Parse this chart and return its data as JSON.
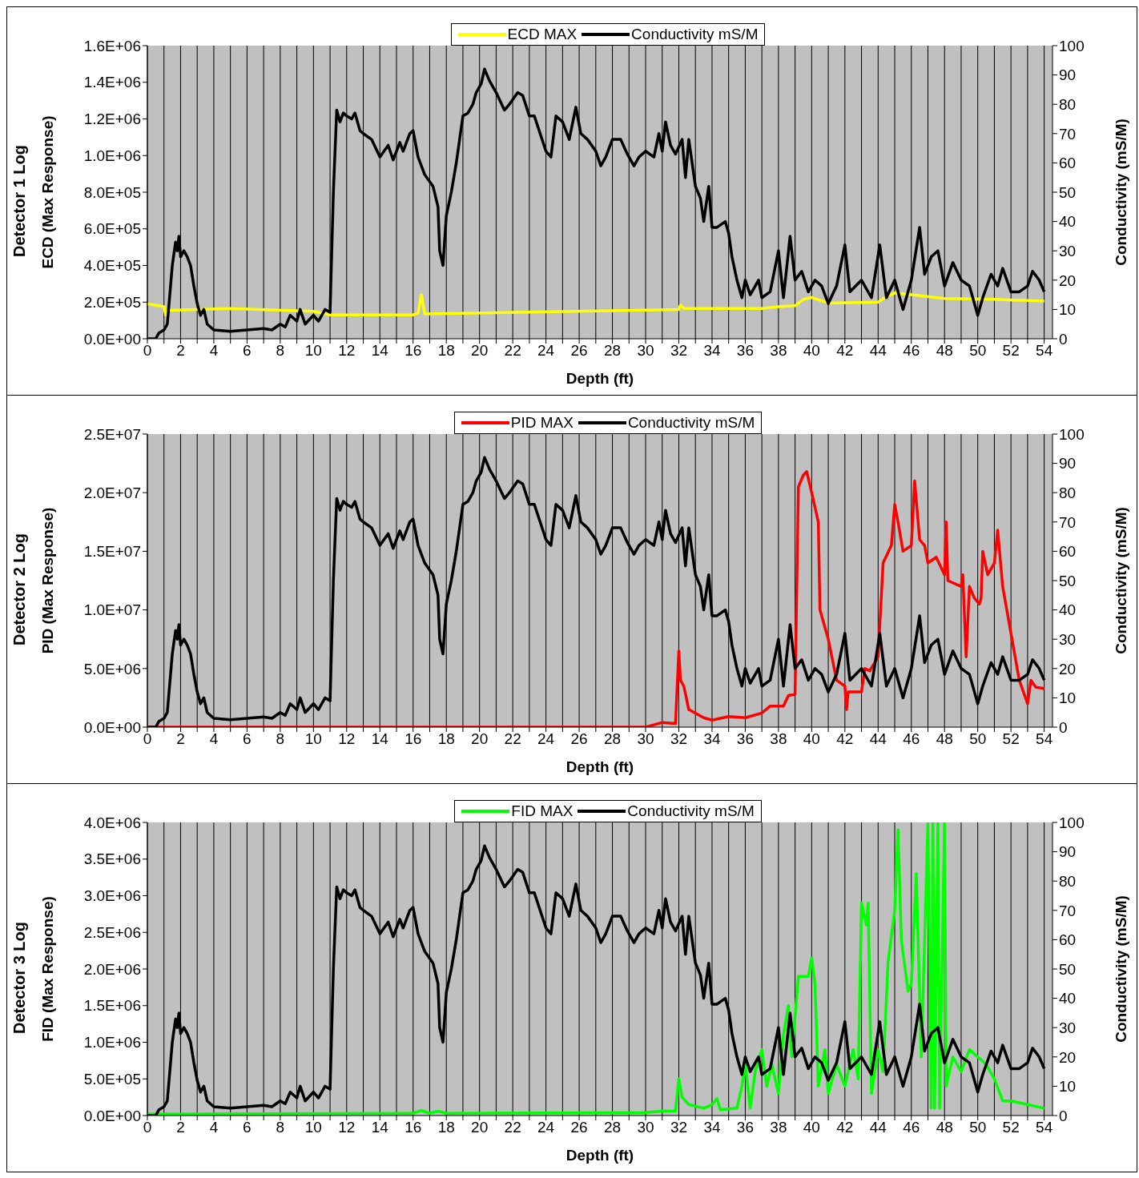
{
  "chart_data": [
    {
      "type": "line",
      "title": "Detector 1 Log",
      "xlabel": "Depth (ft)",
      "ylabel": "ECD (Max Response)",
      "y2label": "Conductivity (mS/M)",
      "grid": true,
      "legend": "top",
      "marker": "none",
      "line_style": "solid",
      "xlim": [
        0,
        54.5
      ],
      "xticks": [
        0,
        {
          "value": 1,
          "label": null
        },
        2,
        {
          "value": 3,
          "label": null
        },
        4,
        {
          "value": 5,
          "label": null
        },
        6,
        {
          "value": 7,
          "label": null
        },
        8,
        {
          "value": 9,
          "label": null
        },
        10,
        {
          "value": 11,
          "label": null
        },
        12,
        {
          "value": 13,
          "label": null
        },
        14,
        {
          "value": 15,
          "label": null
        },
        16,
        {
          "value": 17,
          "label": null
        },
        18,
        {
          "value": 19,
          "label": null
        },
        20,
        {
          "value": 21,
          "label": null
        },
        22,
        {
          "value": 23,
          "label": null
        },
        24,
        {
          "value": 25,
          "label": null
        },
        26,
        {
          "value": 27,
          "label": null
        },
        28,
        {
          "value": 29,
          "label": null
        },
        30,
        {
          "value": 31,
          "label": null
        },
        32,
        {
          "value": 33,
          "label": null
        },
        34,
        {
          "value": 35,
          "label": null
        },
        36,
        {
          "value": 37,
          "label": null
        },
        38,
        {
          "value": 39,
          "label": null
        },
        40,
        {
          "value": 41,
          "label": null
        },
        42,
        {
          "value": 43,
          "label": null
        },
        44,
        {
          "value": 45,
          "label": null
        },
        46,
        {
          "value": 47,
          "label": null
        },
        48,
        {
          "value": 49,
          "label": null
        },
        50,
        {
          "value": 51,
          "label": null
        },
        52,
        {
          "value": 53,
          "label": null
        },
        54
      ],
      "ylim": [
        0,
        1600000
      ],
      "yticks": [
        {
          "value": 0,
          "label": "0.0E+00"
        },
        {
          "value": 200000,
          "label": "2.0E+05"
        },
        {
          "value": 400000,
          "label": "4.0E+05"
        },
        {
          "value": 600000,
          "label": "6.0E+05"
        },
        {
          "value": 800000,
          "label": "8.0E+05"
        },
        {
          "value": 1000000,
          "label": "1.0E+06"
        },
        {
          "value": 1200000,
          "label": "1.2E+06"
        },
        {
          "value": 1400000,
          "label": "1.4E+06"
        },
        {
          "value": 1600000,
          "label": "1.6E+06"
        }
      ],
      "y2lim": [
        0,
        100
      ],
      "y2ticks": [
        0,
        10,
        20,
        30,
        40,
        50,
        60,
        70,
        80,
        90,
        100
      ],
      "series": [
        {
          "name": "ECD  MAX",
          "color": "#ffff00",
          "x": [
            0,
            1,
            1.1,
            1.3,
            3,
            5,
            10,
            11,
            16,
            16.3,
            16.5,
            16.7,
            32,
            32.1,
            32.3,
            37,
            38,
            39,
            39.5,
            40,
            41,
            44,
            44.5,
            45,
            46,
            48,
            51,
            54
          ],
          "values": [
            190000,
            175000,
            130000,
            155000,
            160000,
            165000,
            150000,
            130000,
            130000,
            140000,
            240000,
            135000,
            160000,
            185000,
            165000,
            165000,
            175000,
            180000,
            215000,
            225000,
            195000,
            200000,
            230000,
            250000,
            240000,
            220000,
            215000,
            205000
          ]
        },
        {
          "name": "Conductivity mS/M",
          "color": "#000000",
          "axis": "y2",
          "x": [
            0,
            0.5,
            0.7,
            1,
            1.2,
            1.5,
            1.7,
            1.8,
            1.9,
            2,
            2.2,
            2.4,
            2.6,
            2.8,
            3,
            3.2,
            3.4,
            3.6,
            4,
            5,
            6,
            7,
            7.5,
            8,
            8.3,
            8.6,
            9,
            9.2,
            9.5,
            10,
            10.3,
            10.7,
            11,
            11.2,
            11.4,
            11.6,
            11.8,
            12,
            12.3,
            12.5,
            12.8,
            13,
            13.5,
            14,
            14.5,
            14.8,
            15.2,
            15.4,
            15.8,
            16,
            16.3,
            16.7,
            17.2,
            17.5,
            17.6,
            17.8,
            18,
            18.3,
            18.6,
            19,
            19.3,
            19.6,
            19.8,
            20.1,
            20.3,
            20.6,
            21,
            21.5,
            21.8,
            22.3,
            22.6,
            23,
            23.3,
            24,
            24.3,
            24.6,
            25,
            25.4,
            25.8,
            26.1,
            26.5,
            27,
            27.3,
            27.6,
            28,
            28.5,
            28.9,
            29.3,
            29.6,
            30,
            30.5,
            30.8,
            31,
            31.2,
            31.5,
            31.8,
            32.2,
            32.4,
            32.6,
            33,
            33.3,
            33.5,
            33.8,
            34,
            34.3,
            34.8,
            35,
            35.2,
            35.5,
            35.8,
            36,
            36.3,
            36.8,
            37,
            37.5,
            38,
            38.3,
            38.7,
            39,
            39.4,
            39.8,
            40.2,
            40.6,
            41,
            41.5,
            42,
            42.3,
            43,
            43.6,
            44.1,
            44.5,
            45,
            45.5,
            46,
            46.5,
            46.8,
            47.2,
            47.6,
            48,
            48.5,
            49,
            49.5,
            50,
            50.3,
            50.8,
            51.2,
            51.5,
            52,
            52.5,
            53,
            53.3,
            53.7,
            54
          ],
          "values": [
            0,
            0,
            2,
            3,
            5,
            25,
            33,
            30,
            35,
            28,
            30,
            28,
            25,
            18,
            12,
            8,
            10,
            5,
            3,
            2.5,
            3,
            3.5,
            3,
            5,
            4,
            8,
            6,
            10,
            5,
            8,
            6,
            10,
            9,
            50,
            78,
            74,
            77,
            76,
            75,
            77,
            71,
            70,
            68,
            62,
            66,
            61,
            67,
            64,
            70,
            71,
            62,
            56,
            52,
            45,
            30,
            25,
            42,
            50,
            60,
            76,
            77,
            80,
            84,
            87,
            92,
            88,
            84,
            78,
            80,
            84,
            83,
            76,
            76,
            64,
            62,
            76,
            74,
            68,
            79,
            70,
            68,
            64,
            59,
            62,
            68,
            68,
            63,
            59,
            62,
            64,
            62,
            70,
            64,
            74,
            66,
            63,
            68,
            55,
            68,
            52,
            48,
            40,
            52,
            38,
            38,
            40,
            36,
            28,
            20,
            14,
            20,
            15,
            20,
            14,
            16,
            30,
            14,
            35,
            20,
            23,
            16,
            20,
            18,
            12,
            18,
            32,
            16,
            20,
            14,
            32,
            14,
            20,
            10,
            20,
            38,
            22,
            28,
            30,
            18,
            26,
            20,
            18,
            8,
            14,
            22,
            18,
            24,
            16,
            16,
            18,
            23,
            20,
            16
          ]
        }
      ]
    },
    {
      "type": "line",
      "title": "Detector 2 Log",
      "xlabel": "Depth (ft)",
      "ylabel": "PID (Max Response)",
      "y2label": "Conductivity (mS/M)",
      "grid": true,
      "legend": "top",
      "marker": "none",
      "line_style": "solid",
      "xlim": [
        0,
        54.5
      ],
      "xticks": [
        0,
        {
          "value": 1,
          "label": null
        },
        2,
        {
          "value": 3,
          "label": null
        },
        4,
        {
          "value": 5,
          "label": null
        },
        6,
        {
          "value": 7,
          "label": null
        },
        8,
        {
          "value": 9,
          "label": null
        },
        10,
        {
          "value": 11,
          "label": null
        },
        12,
        {
          "value": 13,
          "label": null
        },
        14,
        {
          "value": 15,
          "label": null
        },
        16,
        {
          "value": 17,
          "label": null
        },
        18,
        {
          "value": 19,
          "label": null
        },
        20,
        {
          "value": 21,
          "label": null
        },
        22,
        {
          "value": 23,
          "label": null
        },
        24,
        {
          "value": 25,
          "label": null
        },
        26,
        {
          "value": 27,
          "label": null
        },
        28,
        {
          "value": 29,
          "label": null
        },
        30,
        {
          "value": 31,
          "label": null
        },
        32,
        {
          "value": 33,
          "label": null
        },
        34,
        {
          "value": 35,
          "label": null
        },
        36,
        {
          "value": 37,
          "label": null
        },
        38,
        {
          "value": 39,
          "label": null
        },
        40,
        {
          "value": 41,
          "label": null
        },
        42,
        {
          "value": 43,
          "label": null
        },
        44,
        {
          "value": 45,
          "label": null
        },
        46,
        {
          "value": 47,
          "label": null
        },
        48,
        {
          "value": 49,
          "label": null
        },
        50,
        {
          "value": 51,
          "label": null
        },
        52,
        {
          "value": 53,
          "label": null
        },
        54
      ],
      "ylim": [
        0,
        25000000
      ],
      "yticks": [
        {
          "value": 0,
          "label": "0.0E+00"
        },
        {
          "value": 5000000,
          "label": "5.0E+06"
        },
        {
          "value": 10000000,
          "label": "1.0E+07"
        },
        {
          "value": 15000000,
          "label": "1.5E+07"
        },
        {
          "value": 20000000,
          "label": "2.0E+07"
        },
        {
          "value": 25000000,
          "label": "2.5E+07"
        }
      ],
      "y2lim": [
        0,
        100
      ],
      "y2ticks": [
        0,
        10,
        20,
        30,
        40,
        50,
        60,
        70,
        80,
        90,
        100
      ],
      "series": [
        {
          "name": "PID MAX",
          "color": "#ff0000",
          "x": [
            0,
            30,
            30.5,
            31,
            31.8,
            32,
            32.1,
            32.3,
            32.6,
            33.5,
            34,
            35,
            36,
            37,
            37.5,
            38.3,
            38.6,
            39,
            39.2,
            39.5,
            39.7,
            40,
            40.4,
            40.5,
            41,
            41.5,
            42,
            42.1,
            42.2,
            43,
            43.2,
            43.5,
            44,
            44.3,
            44.8,
            45,
            45.2,
            45.5,
            46,
            46.2,
            46.5,
            46.8,
            47,
            47.5,
            48,
            48.1,
            48.2,
            49,
            49.1,
            49.3,
            49.5,
            49.8,
            50.1,
            50.2,
            50.3,
            50.6,
            51,
            51.2,
            51.5,
            52,
            52.5,
            53,
            53.2,
            53.5,
            54
          ],
          "values": [
            0,
            0,
            200000,
            400000,
            300000,
            6500000,
            4000000,
            3500000,
            1500000,
            800000,
            600000,
            900000,
            800000,
            1200000,
            1800000,
            1800000,
            2700000,
            2800000,
            20500000,
            21500000,
            21800000,
            20000000,
            17500000,
            10000000,
            7500000,
            4000000,
            3500000,
            1500000,
            3000000,
            3000000,
            5000000,
            4800000,
            6000000,
            14000000,
            15500000,
            19000000,
            17500000,
            15000000,
            15500000,
            21000000,
            16000000,
            15500000,
            14000000,
            14500000,
            13000000,
            17500000,
            12500000,
            12000000,
            13000000,
            6000000,
            12000000,
            11000000,
            10500000,
            11000000,
            15000000,
            13000000,
            14000000,
            16800000,
            12000000,
            8000000,
            4000000,
            2000000,
            4000000,
            3400000,
            3300000
          ]
        },
        {
          "name": "Conductivity mS/M",
          "color": "#000000",
          "axis": "y2",
          "x": [
            0,
            0.5,
            0.7,
            1,
            1.2,
            1.5,
            1.7,
            1.8,
            1.9,
            2,
            2.2,
            2.4,
            2.6,
            2.8,
            3,
            3.2,
            3.4,
            3.6,
            4,
            5,
            6,
            7,
            7.5,
            8,
            8.3,
            8.6,
            9,
            9.2,
            9.5,
            10,
            10.3,
            10.7,
            11,
            11.2,
            11.4,
            11.6,
            11.8,
            12,
            12.3,
            12.5,
            12.8,
            13,
            13.5,
            14,
            14.5,
            14.8,
            15.2,
            15.4,
            15.8,
            16,
            16.3,
            16.7,
            17.2,
            17.5,
            17.6,
            17.8,
            18,
            18.3,
            18.6,
            19,
            19.3,
            19.6,
            19.8,
            20.1,
            20.3,
            20.6,
            21,
            21.5,
            21.8,
            22.3,
            22.6,
            23,
            23.3,
            24,
            24.3,
            24.6,
            25,
            25.4,
            25.8,
            26.1,
            26.5,
            27,
            27.3,
            27.6,
            28,
            28.5,
            28.9,
            29.3,
            29.6,
            30,
            30.5,
            30.8,
            31,
            31.2,
            31.5,
            31.8,
            32.2,
            32.4,
            32.6,
            33,
            33.3,
            33.5,
            33.8,
            34,
            34.3,
            34.8,
            35,
            35.2,
            35.5,
            35.8,
            36,
            36.3,
            36.8,
            37,
            37.5,
            38,
            38.3,
            38.7,
            39,
            39.4,
            39.8,
            40.2,
            40.6,
            41,
            41.5,
            42,
            42.3,
            43,
            43.6,
            44.1,
            44.5,
            45,
            45.5,
            46,
            46.5,
            46.8,
            47.2,
            47.6,
            48,
            48.5,
            49,
            49.5,
            50,
            50.3,
            50.8,
            51.2,
            51.5,
            52,
            52.5,
            53,
            53.3,
            53.7,
            54
          ],
          "values": [
            0,
            0,
            2,
            3,
            5,
            25,
            33,
            30,
            35,
            28,
            30,
            28,
            25,
            18,
            12,
            8,
            10,
            5,
            3,
            2.5,
            3,
            3.5,
            3,
            5,
            4,
            8,
            6,
            10,
            5,
            8,
            6,
            10,
            9,
            50,
            78,
            74,
            77,
            76,
            75,
            77,
            71,
            70,
            68,
            62,
            66,
            61,
            67,
            64,
            70,
            71,
            62,
            56,
            52,
            45,
            30,
            25,
            42,
            50,
            60,
            76,
            77,
            80,
            84,
            87,
            92,
            88,
            84,
            78,
            80,
            84,
            83,
            76,
            76,
            64,
            62,
            76,
            74,
            68,
            79,
            70,
            68,
            64,
            59,
            62,
            68,
            68,
            63,
            59,
            62,
            64,
            62,
            70,
            64,
            74,
            66,
            63,
            68,
            55,
            68,
            52,
            48,
            40,
            52,
            38,
            38,
            40,
            36,
            28,
            20,
            14,
            20,
            15,
            20,
            14,
            16,
            30,
            14,
            35,
            20,
            23,
            16,
            20,
            18,
            12,
            18,
            32,
            16,
            20,
            14,
            32,
            14,
            20,
            10,
            20,
            38,
            22,
            28,
            30,
            18,
            26,
            20,
            18,
            8,
            14,
            22,
            18,
            24,
            16,
            16,
            18,
            23,
            20,
            16
          ]
        }
      ]
    },
    {
      "type": "line",
      "title": "Detector 3 Log",
      "xlabel": "Depth (ft)",
      "ylabel": "FID (Max Response)",
      "y2label": "Conductivity (mS/M)",
      "grid": true,
      "legend": "top",
      "marker": "none",
      "line_style": "solid",
      "xlim": [
        0,
        54.5
      ],
      "xticks": [
        0,
        {
          "value": 1,
          "label": null
        },
        2,
        {
          "value": 3,
          "label": null
        },
        4,
        {
          "value": 5,
          "label": null
        },
        6,
        {
          "value": 7,
          "label": null
        },
        8,
        {
          "value": 9,
          "label": null
        },
        10,
        {
          "value": 11,
          "label": null
        },
        12,
        {
          "value": 13,
          "label": null
        },
        14,
        {
          "value": 15,
          "label": null
        },
        16,
        {
          "value": 17,
          "label": null
        },
        18,
        {
          "value": 19,
          "label": null
        },
        20,
        {
          "value": 21,
          "label": null
        },
        22,
        {
          "value": 23,
          "label": null
        },
        24,
        {
          "value": 25,
          "label": null
        },
        26,
        {
          "value": 27,
          "label": null
        },
        28,
        {
          "value": 29,
          "label": null
        },
        30,
        {
          "value": 31,
          "label": null
        },
        32,
        {
          "value": 33,
          "label": null
        },
        34,
        {
          "value": 35,
          "label": null
        },
        36,
        {
          "value": 37,
          "label": null
        },
        38,
        {
          "value": 39,
          "label": null
        },
        40,
        {
          "value": 41,
          "label": null
        },
        42,
        {
          "value": 43,
          "label": null
        },
        44,
        {
          "value": 45,
          "label": null
        },
        46,
        {
          "value": 47,
          "label": null
        },
        48,
        {
          "value": 49,
          "label": null
        },
        50,
        {
          "value": 51,
          "label": null
        },
        52,
        {
          "value": 53,
          "label": null
        },
        54
      ],
      "ylim": [
        0,
        4000000
      ],
      "yticks": [
        {
          "value": 0,
          "label": "0.0E+00"
        },
        {
          "value": 500000,
          "label": "5.0E+05"
        },
        {
          "value": 1000000,
          "label": "1.0E+06"
        },
        {
          "value": 1500000,
          "label": "1.5E+06"
        },
        {
          "value": 2000000,
          "label": "2.0E+06"
        },
        {
          "value": 2500000,
          "label": "2.5E+06"
        },
        {
          "value": 3000000,
          "label": "3.0E+06"
        },
        {
          "value": 3500000,
          "label": "3.5E+06"
        },
        {
          "value": 4000000,
          "label": "4.0E+06"
        }
      ],
      "y2lim": [
        0,
        100
      ],
      "y2ticks": [
        0,
        10,
        20,
        30,
        40,
        50,
        60,
        70,
        80,
        90,
        100
      ],
      "series": [
        {
          "name": "FID MAX",
          "color": "#00ff00",
          "x": [
            0,
            16,
            16.5,
            17,
            17.5,
            18,
            30,
            31,
            31.8,
            32,
            32.2,
            32.6,
            33.5,
            34,
            34.3,
            34.5,
            35.5,
            35.8,
            36,
            36.3,
            36.6,
            37,
            37.3,
            37.6,
            38,
            38.3,
            38.6,
            38.8,
            39.2,
            39.8,
            40,
            40.2,
            40.4,
            40.8,
            41,
            41.5,
            42,
            42.5,
            42.8,
            43,
            43.3,
            43.4,
            43.6,
            44,
            44.3,
            44.6,
            45,
            45.2,
            45.4,
            45.8,
            46,
            46.3,
            46.6,
            47,
            47.2,
            47.3,
            47.4,
            47.6,
            47.7,
            48,
            48.1,
            48.5,
            49,
            49.5,
            50,
            50.5,
            51,
            51.5,
            52,
            53,
            54
          ],
          "values": [
            20000,
            30000,
            70000,
            30000,
            60000,
            30000,
            40000,
            60000,
            60000,
            500000,
            250000,
            150000,
            100000,
            150000,
            230000,
            80000,
            100000,
            400000,
            700000,
            100000,
            600000,
            900000,
            400000,
            700000,
            300000,
            1100000,
            1500000,
            800000,
            1900000,
            1900000,
            2150000,
            1800000,
            400000,
            900000,
            300000,
            700000,
            400000,
            900000,
            500000,
            2900000,
            2600000,
            2900000,
            300000,
            900000,
            600000,
            2100000,
            2800000,
            3900000,
            2400000,
            1700000,
            1800000,
            3300000,
            800000,
            4000000,
            100000,
            4000000,
            100000,
            4000000,
            100000,
            4000000,
            400000,
            800000,
            600000,
            900000,
            800000,
            700000,
            500000,
            200000,
            200000,
            150000,
            100000
          ]
        },
        {
          "name": "Conductivity mS/M",
          "color": "#000000",
          "axis": "y2",
          "x": [
            0,
            0.5,
            0.7,
            1,
            1.2,
            1.5,
            1.7,
            1.8,
            1.9,
            2,
            2.2,
            2.4,
            2.6,
            2.8,
            3,
            3.2,
            3.4,
            3.6,
            4,
            5,
            6,
            7,
            7.5,
            8,
            8.3,
            8.6,
            9,
            9.2,
            9.5,
            10,
            10.3,
            10.7,
            11,
            11.2,
            11.4,
            11.6,
            11.8,
            12,
            12.3,
            12.5,
            12.8,
            13,
            13.5,
            14,
            14.5,
            14.8,
            15.2,
            15.4,
            15.8,
            16,
            16.3,
            16.7,
            17.2,
            17.5,
            17.6,
            17.8,
            18,
            18.3,
            18.6,
            19,
            19.3,
            19.6,
            19.8,
            20.1,
            20.3,
            20.6,
            21,
            21.5,
            21.8,
            22.3,
            22.6,
            23,
            23.3,
            24,
            24.3,
            24.6,
            25,
            25.4,
            25.8,
            26.1,
            26.5,
            27,
            27.3,
            27.6,
            28,
            28.5,
            28.9,
            29.3,
            29.6,
            30,
            30.5,
            30.8,
            31,
            31.2,
            31.5,
            31.8,
            32.2,
            32.4,
            32.6,
            33,
            33.3,
            33.5,
            33.8,
            34,
            34.3,
            34.8,
            35,
            35.2,
            35.5,
            35.8,
            36,
            36.3,
            36.8,
            37,
            37.5,
            38,
            38.3,
            38.7,
            39,
            39.4,
            39.8,
            40.2,
            40.6,
            41,
            41.5,
            42,
            42.3,
            43,
            43.6,
            44.1,
            44.5,
            45,
            45.5,
            46,
            46.5,
            46.8,
            47.2,
            47.6,
            48,
            48.5,
            49,
            49.5,
            50,
            50.3,
            50.8,
            51.2,
            51.5,
            52,
            52.5,
            53,
            53.3,
            53.7,
            54
          ],
          "values": [
            0,
            0,
            2,
            3,
            5,
            25,
            33,
            30,
            35,
            28,
            30,
            28,
            25,
            18,
            12,
            8,
            10,
            5,
            3,
            2.5,
            3,
            3.5,
            3,
            5,
            4,
            8,
            6,
            10,
            5,
            8,
            6,
            10,
            9,
            50,
            78,
            74,
            77,
            76,
            75,
            77,
            71,
            70,
            68,
            62,
            66,
            61,
            67,
            64,
            70,
            71,
            62,
            56,
            52,
            45,
            30,
            25,
            42,
            50,
            60,
            76,
            77,
            80,
            84,
            87,
            92,
            88,
            84,
            78,
            80,
            84,
            83,
            76,
            76,
            64,
            62,
            76,
            74,
            68,
            79,
            70,
            68,
            64,
            59,
            62,
            68,
            68,
            63,
            59,
            62,
            64,
            62,
            70,
            64,
            74,
            66,
            63,
            68,
            55,
            68,
            52,
            48,
            40,
            52,
            38,
            38,
            40,
            36,
            28,
            20,
            14,
            20,
            15,
            20,
            14,
            16,
            30,
            14,
            35,
            20,
            23,
            16,
            20,
            18,
            12,
            18,
            32,
            16,
            20,
            14,
            32,
            14,
            20,
            10,
            20,
            38,
            22,
            28,
            30,
            18,
            26,
            20,
            18,
            8,
            14,
            22,
            18,
            24,
            16,
            16,
            18,
            23,
            20,
            16
          ]
        }
      ]
    }
  ]
}
